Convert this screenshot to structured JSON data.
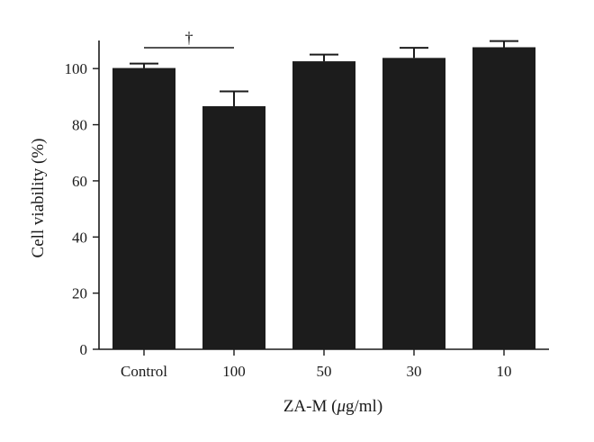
{
  "chart_data": {
    "type": "bar",
    "categories": [
      "Control",
      "100",
      "50",
      "30",
      "10"
    ],
    "series": [
      {
        "values": [
          100.2,
          86.6,
          102.6,
          103.8,
          107.6
        ],
        "error": [
          1.6,
          5.3,
          2.4,
          3.6,
          2.2
        ]
      }
    ],
    "xlabel": "ZA-M (μg/ml)",
    "xlabel_prefix": "ZA-M (",
    "xlabel_unit_symbol": "μ",
    "xlabel_suffix": "g/ml)",
    "ylabel": "Cell viability (%)",
    "ylim": [
      0,
      110
    ],
    "yticks": [
      0,
      20,
      40,
      60,
      80,
      100
    ],
    "ytick_labels": [
      "0",
      "20",
      "40",
      "60",
      "80",
      "100"
    ],
    "grid": false,
    "bar_color": "#1c1c1c",
    "annotations": [
      {
        "text": "†",
        "from_category": "Control",
        "to_category": "100",
        "y": 110
      }
    ]
  }
}
